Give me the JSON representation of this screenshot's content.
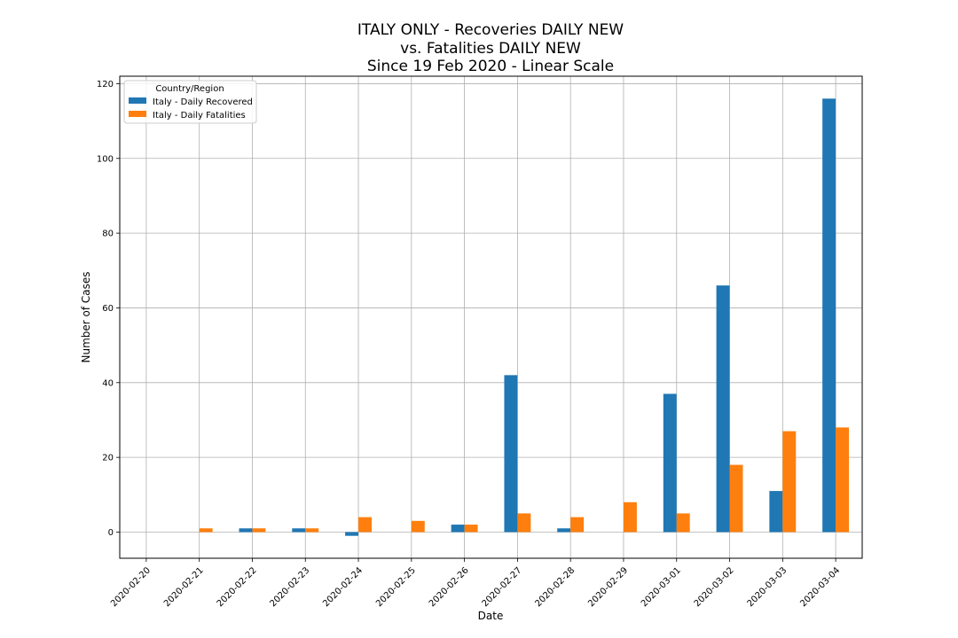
{
  "chart_data": {
    "type": "bar",
    "title_lines": [
      "ITALY ONLY - Recoveries DAILY NEW",
      "vs. Fatalities DAILY NEW",
      "Since 19 Feb 2020 - Linear Scale"
    ],
    "xlabel": "Date",
    "ylabel": "Number of Cases",
    "categories": [
      "2020-02-20",
      "2020-02-21",
      "2020-02-22",
      "2020-02-23",
      "2020-02-24",
      "2020-02-25",
      "2020-02-26",
      "2020-02-27",
      "2020-02-28",
      "2020-02-29",
      "2020-03-01",
      "2020-03-02",
      "2020-03-03",
      "2020-03-04"
    ],
    "series": [
      {
        "name": "Italy - Daily Recovered",
        "color": "#1f77b4",
        "values": [
          0,
          0,
          1,
          1,
          -1,
          0,
          2,
          42,
          1,
          0,
          37,
          66,
          11,
          116
        ]
      },
      {
        "name": "Italy - Daily Fatalities",
        "color": "#ff7f0e",
        "values": [
          0,
          1,
          1,
          1,
          4,
          3,
          2,
          5,
          4,
          8,
          5,
          18,
          27,
          28
        ]
      }
    ],
    "ylim": [
      -7,
      122
    ],
    "yticks": [
      0,
      20,
      40,
      60,
      80,
      100,
      120
    ],
    "grid": true,
    "legend": {
      "title": "Country/Region",
      "placement": "top-left"
    }
  }
}
